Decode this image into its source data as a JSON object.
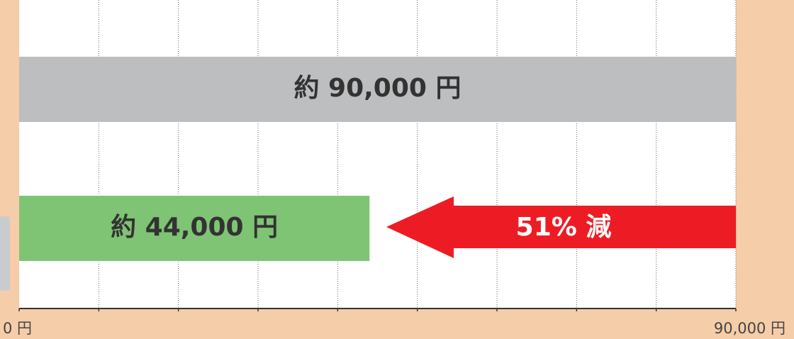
{
  "chart_data": {
    "type": "hbar",
    "categories": [
      null,
      null
    ],
    "values": [
      90000,
      44000
    ],
    "value_labels": [
      "約 90,000 円",
      "約 44,000 円"
    ],
    "colors": [
      "#bcbec0",
      "#7fc474"
    ],
    "xlim": [
      0,
      90000
    ],
    "xticks": [
      {
        "value": 0,
        "label": "0 円"
      },
      {
        "value": 10000,
        "label": null
      },
      {
        "value": 20000,
        "label": null
      },
      {
        "value": 30000,
        "label": null
      },
      {
        "value": 40000,
        "label": null
      },
      {
        "value": 50000,
        "label": null
      },
      {
        "value": 60000,
        "label": null
      },
      {
        "value": 70000,
        "label": null
      },
      {
        "value": 80000,
        "label": null
      },
      {
        "value": 90000,
        "label": "90,000 円"
      }
    ],
    "grid": true,
    "annotation": "51% 減"
  }
}
